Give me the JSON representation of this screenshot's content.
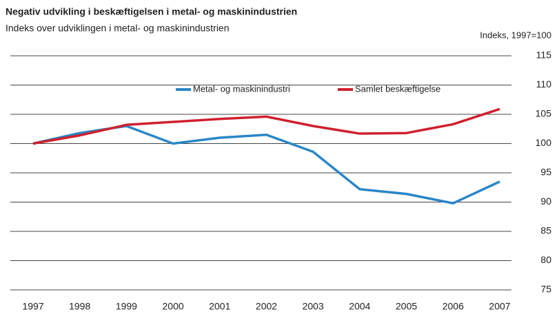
{
  "chart_data": {
    "type": "line",
    "title": "Negativ udvikling i beskæftigelsen i metal- og maskinindustrien",
    "subtitle": "Indeks over udviklingen i metal- og maskinindustrien",
    "y_axis_label": "Indeks, 1997=100",
    "categories": [
      "1997",
      "1998",
      "1999",
      "2000",
      "2001",
      "2002",
      "2003",
      "2004",
      "2005",
      "2006",
      "2007"
    ],
    "series": [
      {
        "name": "Metal- og maskinindustri",
        "color": "#2a86c8",
        "values": [
          100,
          101.8,
          103,
          100,
          101,
          101.5,
          98.6,
          92.2,
          91.4,
          89.8,
          93.5
        ]
      },
      {
        "name": "Samlet beskæftigelse",
        "color": "#d0202e",
        "values": [
          100,
          101.4,
          103.2,
          103.7,
          104.2,
          104.6,
          103,
          101.7,
          101.8,
          103.3,
          105.9
        ]
      }
    ],
    "ylim": [
      75,
      115
    ],
    "yticks": [
      75,
      80,
      85,
      90,
      95,
      100,
      105,
      110,
      115
    ],
    "grid": true
  }
}
